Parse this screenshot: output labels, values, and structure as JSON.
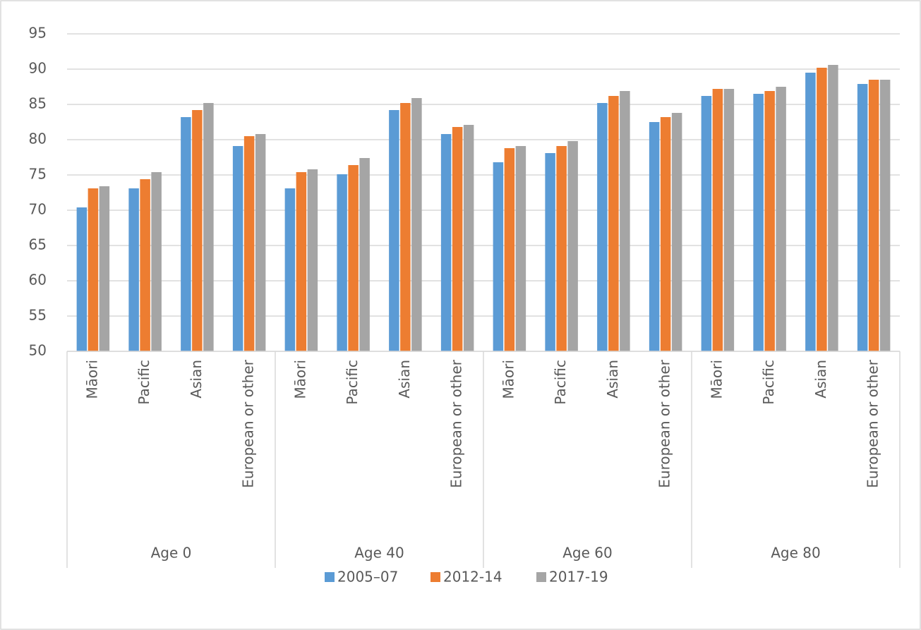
{
  "chart_data": {
    "type": "bar",
    "groups": [
      "Age 0",
      "Age 40",
      "Age 60",
      "Age 80"
    ],
    "categories": [
      "Māori",
      "Pacific",
      "Asian",
      "European or other",
      "Māori",
      "Pacific",
      "Asian",
      "European or other",
      "Māori",
      "Pacific",
      "Asian",
      "European or other",
      "Māori",
      "Pacific",
      "Asian",
      "European or other"
    ],
    "series": [
      {
        "name": "2005–07",
        "color": "#5b9bd5",
        "values": [
          70.4,
          73.1,
          83.2,
          79.1,
          73.1,
          75.1,
          84.2,
          80.8,
          76.8,
          78.1,
          85.2,
          82.5,
          86.2,
          86.5,
          89.5,
          87.9
        ]
      },
      {
        "name": "2012-14",
        "color": "#ed7d31",
        "values": [
          73.1,
          74.4,
          84.2,
          80.5,
          75.4,
          76.4,
          85.2,
          81.8,
          78.8,
          79.1,
          86.2,
          83.2,
          87.2,
          86.9,
          90.2,
          88.5
        ]
      },
      {
        "name": "2017-19",
        "color": "#a5a5a5",
        "values": [
          73.4,
          75.4,
          85.2,
          80.8,
          75.8,
          77.4,
          85.9,
          82.1,
          79.1,
          79.8,
          86.9,
          83.8,
          87.2,
          87.5,
          90.6,
          88.5
        ]
      }
    ],
    "ylim": [
      50,
      95
    ],
    "yticks": [
      50,
      55,
      60,
      65,
      70,
      75,
      80,
      85,
      90,
      95
    ],
    "grid": true,
    "legend": "bottom"
  }
}
